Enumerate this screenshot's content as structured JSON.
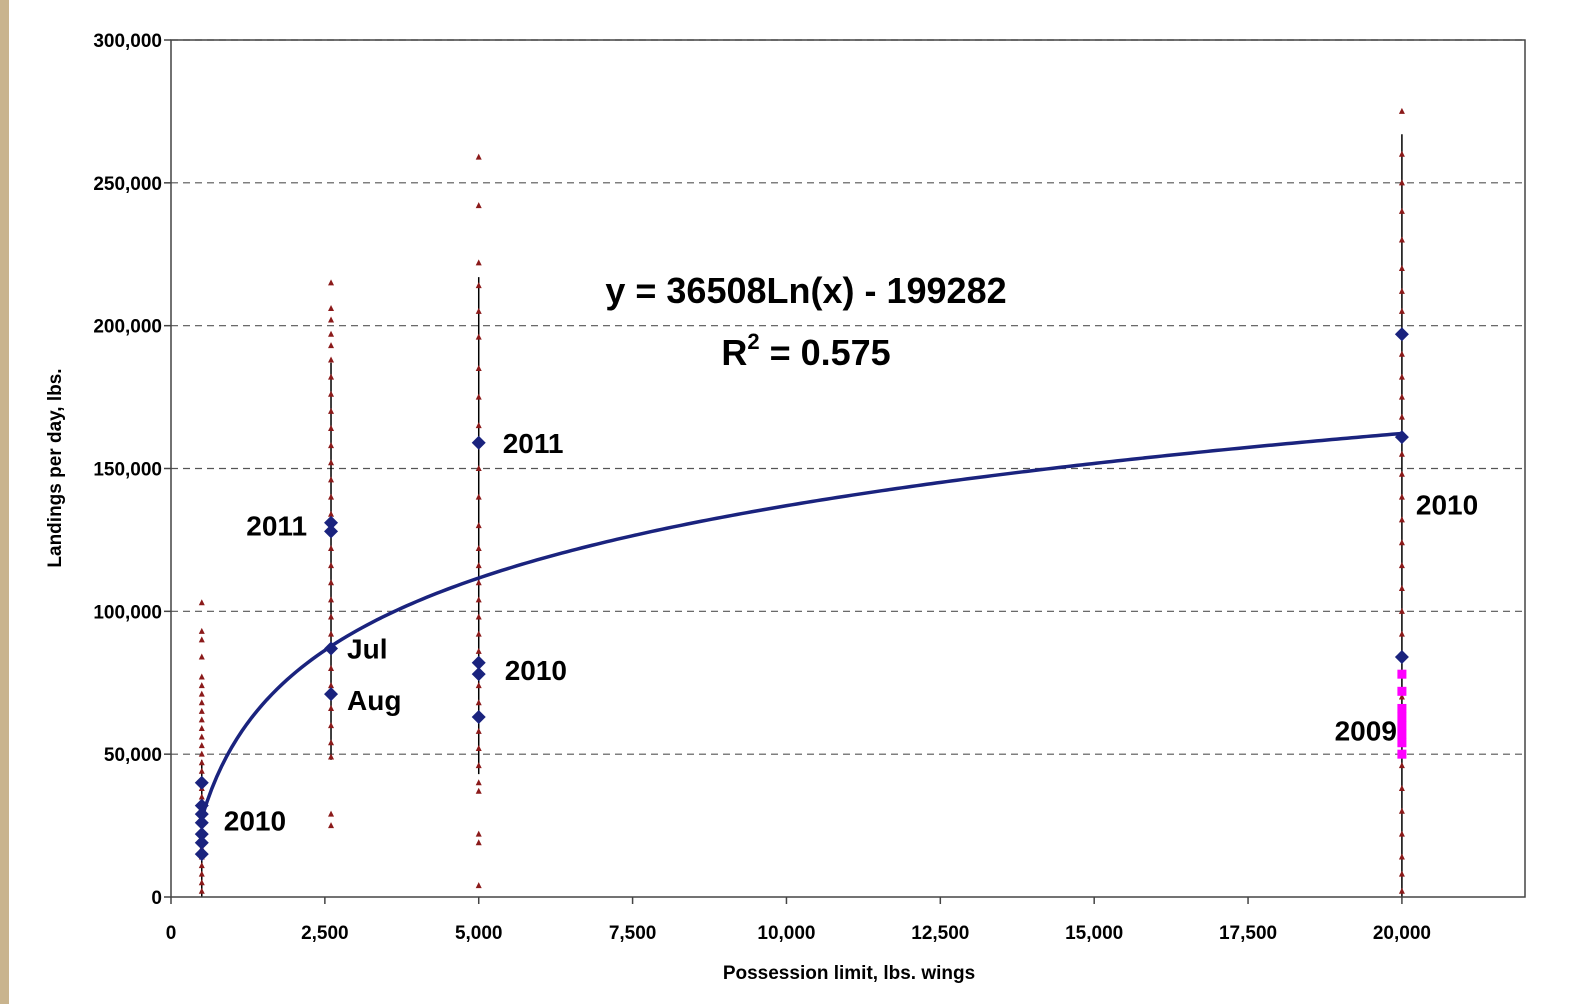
{
  "chart_data": {
    "type": "scatter",
    "xlabel": "Possession limit, lbs. wings",
    "ylabel": "Landings per day, lbs.",
    "xlim": [
      0,
      22000
    ],
    "ylim": [
      0,
      300000
    ],
    "x_ticks": [
      0,
      2500,
      5000,
      7500,
      10000,
      12500,
      15000,
      17500,
      20000
    ],
    "x_tick_labels": [
      "0",
      "2,500",
      "5,000",
      "7,500",
      "10,000",
      "12,500",
      "15,000",
      "17,500",
      "20,000"
    ],
    "y_ticks": [
      0,
      50000,
      100000,
      150000,
      200000,
      250000,
      300000
    ],
    "y_tick_labels": [
      "0",
      "50,000",
      "100,000",
      "150,000",
      "200,000",
      "250,000",
      "300,000"
    ],
    "grid": "horizontal-dashed",
    "trendline": {
      "a": 36508,
      "b": -199282,
      "x_range": [
        500,
        20000
      ],
      "equation": "y = 36508Ln(x) - 199282",
      "r2_prefix": "R",
      "r2_sup": "2",
      "r2_suffix": " = 0.575"
    },
    "daily_ranges": [
      {
        "x": 500,
        "min": 0,
        "max": 48000
      },
      {
        "x": 2600,
        "min": 48000,
        "max": 187000
      },
      {
        "x": 5000,
        "min": 43000,
        "max": 217000
      },
      {
        "x": 20000,
        "min": 0,
        "max": 267000
      }
    ],
    "series": [
      {
        "role": "daily-landings",
        "color": "#8b1a1a",
        "points": [
          {
            "x": 500,
            "y": 103000
          },
          {
            "x": 500,
            "y": 93000
          },
          {
            "x": 500,
            "y": 90000
          },
          {
            "x": 500,
            "y": 84000
          },
          {
            "x": 500,
            "y": 77000
          },
          {
            "x": 500,
            "y": 74000
          },
          {
            "x": 500,
            "y": 71000
          },
          {
            "x": 500,
            "y": 68000
          },
          {
            "x": 500,
            "y": 65000
          },
          {
            "x": 500,
            "y": 62000
          },
          {
            "x": 500,
            "y": 59000
          },
          {
            "x": 500,
            "y": 56000
          },
          {
            "x": 500,
            "y": 53000
          },
          {
            "x": 500,
            "y": 50000
          },
          {
            "x": 500,
            "y": 47000
          },
          {
            "x": 500,
            "y": 44000
          },
          {
            "x": 500,
            "y": 41000
          },
          {
            "x": 500,
            "y": 38000
          },
          {
            "x": 500,
            "y": 35000
          },
          {
            "x": 500,
            "y": 32000
          },
          {
            "x": 500,
            "y": 29000
          },
          {
            "x": 500,
            "y": 26000
          },
          {
            "x": 500,
            "y": 23000
          },
          {
            "x": 500,
            "y": 20000
          },
          {
            "x": 500,
            "y": 17000
          },
          {
            "x": 500,
            "y": 14000
          },
          {
            "x": 500,
            "y": 11000
          },
          {
            "x": 500,
            "y": 8000
          },
          {
            "x": 500,
            "y": 5000
          },
          {
            "x": 500,
            "y": 2000
          },
          {
            "x": 2600,
            "y": 215000
          },
          {
            "x": 2600,
            "y": 206000
          },
          {
            "x": 2600,
            "y": 202000
          },
          {
            "x": 2600,
            "y": 197000
          },
          {
            "x": 2600,
            "y": 193000
          },
          {
            "x": 2600,
            "y": 188000
          },
          {
            "x": 2600,
            "y": 182000
          },
          {
            "x": 2600,
            "y": 176000
          },
          {
            "x": 2600,
            "y": 170000
          },
          {
            "x": 2600,
            "y": 164000
          },
          {
            "x": 2600,
            "y": 158000
          },
          {
            "x": 2600,
            "y": 152000
          },
          {
            "x": 2600,
            "y": 146000
          },
          {
            "x": 2600,
            "y": 140000
          },
          {
            "x": 2600,
            "y": 134000
          },
          {
            "x": 2600,
            "y": 122000
          },
          {
            "x": 2600,
            "y": 116000
          },
          {
            "x": 2600,
            "y": 110000
          },
          {
            "x": 2600,
            "y": 104000
          },
          {
            "x": 2600,
            "y": 98000
          },
          {
            "x": 2600,
            "y": 92000
          },
          {
            "x": 2600,
            "y": 80000
          },
          {
            "x": 2600,
            "y": 74000
          },
          {
            "x": 2600,
            "y": 66000
          },
          {
            "x": 2600,
            "y": 60000
          },
          {
            "x": 2600,
            "y": 54000
          },
          {
            "x": 2600,
            "y": 49000
          },
          {
            "x": 2600,
            "y": 29000
          },
          {
            "x": 2600,
            "y": 25000
          },
          {
            "x": 5000,
            "y": 259000
          },
          {
            "x": 5000,
            "y": 242000
          },
          {
            "x": 5000,
            "y": 222000
          },
          {
            "x": 5000,
            "y": 214000
          },
          {
            "x": 5000,
            "y": 205000
          },
          {
            "x": 5000,
            "y": 196000
          },
          {
            "x": 5000,
            "y": 185000
          },
          {
            "x": 5000,
            "y": 175000
          },
          {
            "x": 5000,
            "y": 165000
          },
          {
            "x": 5000,
            "y": 150000
          },
          {
            "x": 5000,
            "y": 140000
          },
          {
            "x": 5000,
            "y": 130000
          },
          {
            "x": 5000,
            "y": 122000
          },
          {
            "x": 5000,
            "y": 116000
          },
          {
            "x": 5000,
            "y": 110000
          },
          {
            "x": 5000,
            "y": 104000
          },
          {
            "x": 5000,
            "y": 98000
          },
          {
            "x": 5000,
            "y": 92000
          },
          {
            "x": 5000,
            "y": 86000
          },
          {
            "x": 5000,
            "y": 74000
          },
          {
            "x": 5000,
            "y": 68000
          },
          {
            "x": 5000,
            "y": 58000
          },
          {
            "x": 5000,
            "y": 52000
          },
          {
            "x": 5000,
            "y": 46000
          },
          {
            "x": 5000,
            "y": 40000
          },
          {
            "x": 5000,
            "y": 37000
          },
          {
            "x": 5000,
            "y": 22000
          },
          {
            "x": 5000,
            "y": 19000
          },
          {
            "x": 5000,
            "y": 4000
          },
          {
            "x": 20000,
            "y": 275000
          },
          {
            "x": 20000,
            "y": 260000
          },
          {
            "x": 20000,
            "y": 250000
          },
          {
            "x": 20000,
            "y": 240000
          },
          {
            "x": 20000,
            "y": 230000
          },
          {
            "x": 20000,
            "y": 220000
          },
          {
            "x": 20000,
            "y": 212000
          },
          {
            "x": 20000,
            "y": 205000
          },
          {
            "x": 20000,
            "y": 190000
          },
          {
            "x": 20000,
            "y": 182000
          },
          {
            "x": 20000,
            "y": 175000
          },
          {
            "x": 20000,
            "y": 168000
          },
          {
            "x": 20000,
            "y": 155000
          },
          {
            "x": 20000,
            "y": 148000
          },
          {
            "x": 20000,
            "y": 140000
          },
          {
            "x": 20000,
            "y": 132000
          },
          {
            "x": 20000,
            "y": 124000
          },
          {
            "x": 20000,
            "y": 116000
          },
          {
            "x": 20000,
            "y": 108000
          },
          {
            "x": 20000,
            "y": 100000
          },
          {
            "x": 20000,
            "y": 92000
          },
          {
            "x": 20000,
            "y": 70000
          },
          {
            "x": 20000,
            "y": 62000
          },
          {
            "x": 20000,
            "y": 54000
          },
          {
            "x": 20000,
            "y": 46000
          },
          {
            "x": 20000,
            "y": 38000
          },
          {
            "x": 20000,
            "y": 30000
          },
          {
            "x": 20000,
            "y": 22000
          },
          {
            "x": 20000,
            "y": 14000
          },
          {
            "x": 20000,
            "y": 8000
          },
          {
            "x": 20000,
            "y": 2000
          }
        ]
      },
      {
        "role": "daily-landings-2009",
        "color": "#ff00ff",
        "points": [
          {
            "x": 20000,
            "y": 78000
          },
          {
            "x": 20000,
            "y": 72000
          },
          {
            "x": 20000,
            "y": 66000
          },
          {
            "x": 20000,
            "y": 63000
          },
          {
            "x": 20000,
            "y": 60000
          },
          {
            "x": 20000,
            "y": 57000
          },
          {
            "x": 20000,
            "y": 54000
          },
          {
            "x": 20000,
            "y": 50000
          }
        ]
      },
      {
        "role": "monthly-averages",
        "color": "#1a237e",
        "points": [
          {
            "x": 500,
            "y": 40000
          },
          {
            "x": 500,
            "y": 32000
          },
          {
            "x": 500,
            "y": 29000
          },
          {
            "x": 500,
            "y": 26000
          },
          {
            "x": 500,
            "y": 22000
          },
          {
            "x": 500,
            "y": 19000
          },
          {
            "x": 500,
            "y": 15000
          },
          {
            "x": 2600,
            "y": 131000
          },
          {
            "x": 2600,
            "y": 128000
          },
          {
            "x": 2600,
            "y": 87000
          },
          {
            "x": 2600,
            "y": 71000
          },
          {
            "x": 5000,
            "y": 159000
          },
          {
            "x": 5000,
            "y": 82000
          },
          {
            "x": 5000,
            "y": 78000
          },
          {
            "x": 5000,
            "y": 63000
          },
          {
            "x": 20000,
            "y": 197000
          },
          {
            "x": 20000,
            "y": 161000
          },
          {
            "x": 20000,
            "y": 84000
          }
        ]
      }
    ],
    "annotations": [
      {
        "text": "2010",
        "x": 500,
        "y": 26000
      },
      {
        "text": "2011",
        "x": 2600,
        "y": 130000
      },
      {
        "text": "Jul",
        "x": 2600,
        "y": 87000
      },
      {
        "text": "Aug",
        "x": 2600,
        "y": 71000
      },
      {
        "text": "2011",
        "x": 5000,
        "y": 159000
      },
      {
        "text": "2010",
        "x": 5000,
        "y": 78000
      },
      {
        "text": "2010",
        "x": 20000,
        "y": 143000
      },
      {
        "text": "2009",
        "x": 20000,
        "y": 54000
      }
    ],
    "colors": {
      "trendline": "#1a237e",
      "grid": "#555555",
      "axis": "#444444",
      "range_line": "#000000"
    }
  }
}
